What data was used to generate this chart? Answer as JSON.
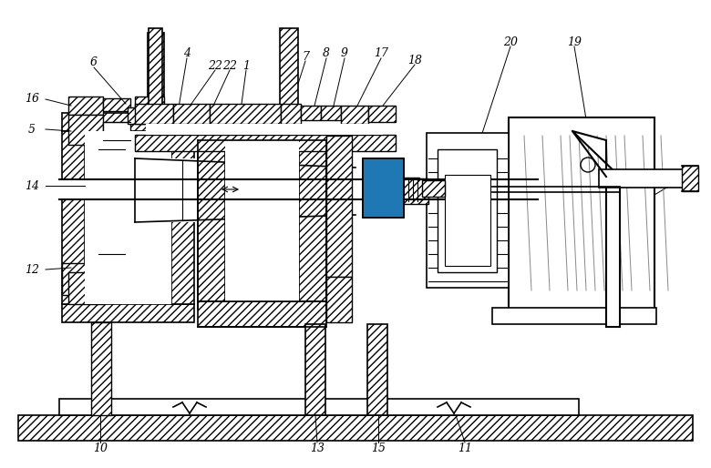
{
  "bg_color": "#ffffff",
  "line_color": "#000000",
  "figsize": [
    7.8,
    5.14
  ],
  "dpi": 100
}
